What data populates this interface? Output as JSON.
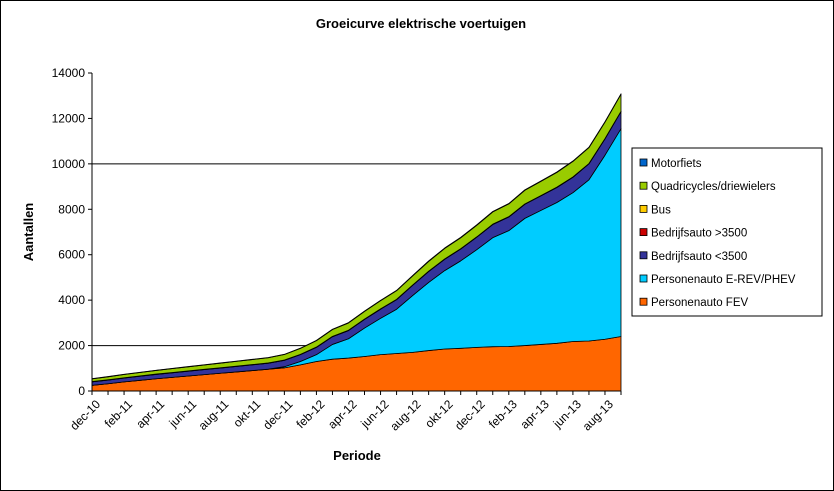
{
  "chart_data": {
    "type": "area",
    "stacked": true,
    "title": "Groeicurve elektrische voertuigen",
    "xlabel": "Periode",
    "ylabel": "Aantallen",
    "ylim": [
      0,
      14000
    ],
    "yticks": [
      0,
      2000,
      4000,
      6000,
      8000,
      10000,
      12000,
      14000
    ],
    "gridlines": [
      2000,
      10000
    ],
    "legend_position": "right",
    "x_tick_labels": [
      "dec-10",
      "feb-11",
      "apr-11",
      "jun-11",
      "aug-11",
      "okt-11",
      "dec-11",
      "feb-12",
      "apr-12",
      "jun-12",
      "aug-12",
      "okt-12",
      "dec-12",
      "feb-13",
      "apr-13",
      "jun-13",
      "aug-13"
    ],
    "categories": [
      "dec-10",
      "jan-11",
      "feb-11",
      "mrt-11",
      "apr-11",
      "mei-11",
      "jun-11",
      "jul-11",
      "aug-11",
      "sep-11",
      "okt-11",
      "nov-11",
      "dec-11",
      "jan-12",
      "feb-12",
      "mrt-12",
      "apr-12",
      "mei-12",
      "jun-12",
      "jul-12",
      "aug-12",
      "sep-12",
      "okt-12",
      "nov-12",
      "dec-12",
      "jan-13",
      "feb-13",
      "mrt-13",
      "apr-13",
      "mei-13",
      "jun-13",
      "jul-13",
      "aug-13",
      "sep-13"
    ],
    "series": [
      {
        "name": "Personenauto FEV",
        "color": "#FF6600",
        "values": [
          250,
          320,
          400,
          470,
          540,
          600,
          660,
          720,
          780,
          840,
          900,
          960,
          1020,
          1150,
          1300,
          1400,
          1450,
          1520,
          1600,
          1650,
          1700,
          1780,
          1850,
          1880,
          1920,
          1950,
          1960,
          2000,
          2050,
          2100,
          2180,
          2200,
          2280,
          2400
        ]
      },
      {
        "name": "Personenauto E-REV/PHEV",
        "color": "#00CCFF",
        "values": [
          0,
          0,
          0,
          0,
          0,
          0,
          0,
          0,
          0,
          0,
          0,
          0,
          50,
          150,
          300,
          650,
          850,
          1250,
          1600,
          1950,
          2500,
          3000,
          3450,
          3850,
          4300,
          4800,
          5100,
          5600,
          5900,
          6200,
          6550,
          7100,
          8100,
          9150
        ]
      },
      {
        "name": "Bedrijfsauto <3500",
        "color": "#333399",
        "values": [
          150,
          160,
          170,
          180,
          190,
          200,
          210,
          220,
          230,
          240,
          250,
          260,
          280,
          300,
          320,
          340,
          360,
          380,
          400,
          420,
          450,
          480,
          500,
          520,
          550,
          580,
          600,
          620,
          640,
          660,
          680,
          700,
          720,
          750
        ]
      },
      {
        "name": "Bedrijfsauto >3500",
        "color": "#CC0000",
        "values": [
          5,
          5,
          5,
          5,
          5,
          5,
          5,
          5,
          5,
          5,
          5,
          5,
          5,
          5,
          5,
          5,
          5,
          5,
          5,
          5,
          5,
          5,
          5,
          5,
          5,
          5,
          5,
          5,
          5,
          5,
          5,
          5,
          5,
          5
        ]
      },
      {
        "name": "Bus",
        "color": "#FFCC00",
        "values": [
          10,
          10,
          10,
          10,
          10,
          10,
          10,
          10,
          10,
          10,
          10,
          10,
          10,
          10,
          10,
          10,
          10,
          10,
          10,
          10,
          10,
          10,
          10,
          10,
          10,
          10,
          10,
          10,
          10,
          10,
          10,
          10,
          10,
          10
        ]
      },
      {
        "name": "Quadricycles/driewielers",
        "color": "#99CC00",
        "values": [
          120,
          130,
          140,
          150,
          160,
          170,
          180,
          190,
          200,
          210,
          220,
          230,
          240,
          260,
          280,
          300,
          320,
          340,
          360,
          380,
          400,
          430,
          460,
          480,
          510,
          540,
          560,
          600,
          620,
          650,
          680,
          700,
          720,
          750
        ]
      },
      {
        "name": "Motorfiets",
        "color": "#0066CC",
        "values": [
          10,
          10,
          10,
          10,
          10,
          10,
          10,
          10,
          10,
          10,
          10,
          10,
          10,
          10,
          15,
          15,
          15,
          15,
          15,
          15,
          20,
          20,
          20,
          20,
          20,
          20,
          20,
          20,
          20,
          20,
          20,
          20,
          20,
          20
        ]
      }
    ],
    "legend_order": [
      "Motorfiets",
      "Quadricycles/driewielers",
      "Bus",
      "Bedrijfsauto >3500",
      "Bedrijfsauto <3500",
      "Personenauto E-REV/PHEV",
      "Personenauto FEV"
    ]
  }
}
